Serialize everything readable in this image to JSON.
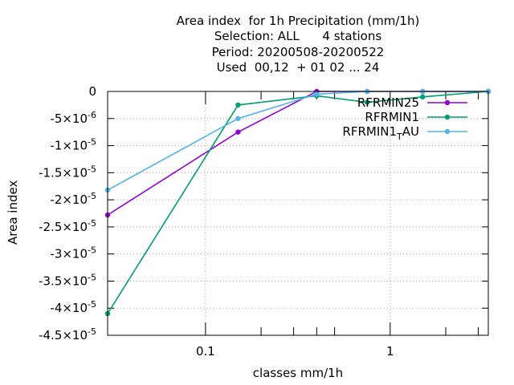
{
  "chart_data": {
    "type": "line",
    "title_lines": [
      "Area index  for 1h Precipitation (mm/1h)",
      "Selection: ALL      4 stations",
      "Period: 20200508-20200522",
      "Used  00,12  + 01 02 ... 24"
    ],
    "xlabel": "classes mm/1h",
    "ylabel": "Area index",
    "x_scale": "log",
    "xlim": [
      0.0295,
      3.4
    ],
    "ylim": [
      -4.5e-05,
      0
    ],
    "x_ticks": [
      {
        "value": 0.1,
        "label": "0.1"
      },
      {
        "value": 1,
        "label": "1"
      }
    ],
    "x_minor_ticks": [
      0.2,
      0.3,
      0.4,
      0.5,
      2,
      3
    ],
    "y_ticks": [
      {
        "value": 0,
        "mantissa": "0",
        "exponent": ""
      },
      {
        "value": -5e-06,
        "mantissa": "-5×10",
        "exponent": "-6"
      },
      {
        "value": -1e-05,
        "mantissa": "-1×10",
        "exponent": "-5"
      },
      {
        "value": -1.5e-05,
        "mantissa": "-1.5×10",
        "exponent": "-5"
      },
      {
        "value": -2e-05,
        "mantissa": "-2×10",
        "exponent": "-5"
      },
      {
        "value": -2.5e-05,
        "mantissa": "-2.5×10",
        "exponent": "-5"
      },
      {
        "value": -3e-05,
        "mantissa": "-3×10",
        "exponent": "-5"
      },
      {
        "value": -3.5e-05,
        "mantissa": "-3.5×10",
        "exponent": "-5"
      },
      {
        "value": -4e-05,
        "mantissa": "-4×10",
        "exponent": "-5"
      },
      {
        "value": -4.5e-05,
        "mantissa": "-4.5×10",
        "exponent": "-5"
      }
    ],
    "grid": true,
    "legend_position": "top-right",
    "series": [
      {
        "name": "RFRMIN25",
        "name_base": "RFRMIN25",
        "name_sub": "",
        "name_suffix": "",
        "color": "#9400d3",
        "x": [
          0.0295,
          0.15,
          0.4,
          0.75,
          1.5,
          3.4
        ],
        "y": [
          -2.28e-05,
          -7.5e-06,
          0,
          0,
          0,
          0
        ]
      },
      {
        "name": "RFRMIN1",
        "name_base": "RFRMIN1",
        "name_sub": "",
        "name_suffix": "",
        "color": "#009e73",
        "x": [
          0.0295,
          0.15,
          0.4,
          0.75,
          1.5,
          3.4
        ],
        "y": [
          -4.1e-05,
          -2.5e-06,
          -8e-07,
          -2e-06,
          -1e-06,
          0
        ]
      },
      {
        "name": "RFRMIN1_TAU",
        "name_base": "RFRMIN1",
        "name_sub": "T",
        "name_suffix": "AU",
        "color": "#56b4e9",
        "x": [
          0.0295,
          0.15,
          0.4,
          0.75,
          1.5,
          3.4
        ],
        "y": [
          -1.82e-05,
          -5e-06,
          -5e-07,
          0,
          0,
          0
        ]
      }
    ]
  }
}
